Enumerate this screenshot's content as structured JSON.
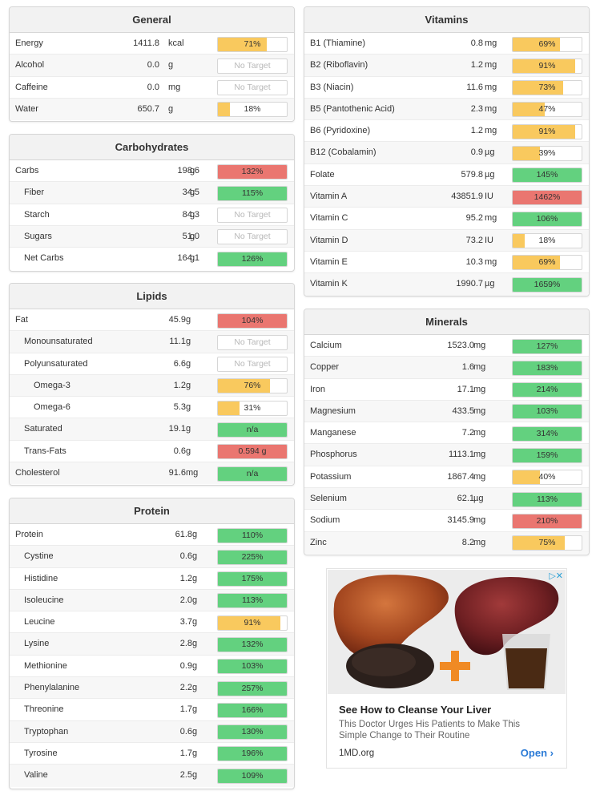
{
  "colors": {
    "orange": "#f9c95e",
    "red": "#ea7670",
    "green": "#63d17f"
  },
  "general": {
    "title": "General",
    "rows": [
      {
        "name": "Energy",
        "amount": "1411.8",
        "unit": "kcal",
        "target": "71%",
        "fill": 0.71,
        "color": "orange",
        "indent": 0
      },
      {
        "name": "Alcohol",
        "amount": "0.0",
        "unit": "g",
        "target": "No Target",
        "fill": 0,
        "color": "none",
        "indent": 0
      },
      {
        "name": "Caffeine",
        "amount": "0.0",
        "unit": "mg",
        "target": "No Target",
        "fill": 0,
        "color": "none",
        "indent": 0
      },
      {
        "name": "Water",
        "amount": "650.7",
        "unit": "g",
        "target": "18%",
        "fill": 0.18,
        "color": "orange",
        "indent": 0
      }
    ]
  },
  "carbohydrates": {
    "title": "Carbohydrates",
    "rows": [
      {
        "name": "Carbs",
        "amount": "198.6",
        "unit": "g",
        "target": "132%",
        "fill": 1,
        "color": "red",
        "indent": 0
      },
      {
        "name": "Fiber",
        "amount": "34.5",
        "unit": "g",
        "target": "115%",
        "fill": 1,
        "color": "green",
        "indent": 1
      },
      {
        "name": "Starch",
        "amount": "84.3",
        "unit": "g",
        "target": "No Target",
        "fill": 0,
        "color": "none",
        "indent": 1
      },
      {
        "name": "Sugars",
        "amount": "51.0",
        "unit": "g",
        "target": "No Target",
        "fill": 0,
        "color": "none",
        "indent": 1
      },
      {
        "name": "Net Carbs",
        "amount": "164.1",
        "unit": "g",
        "target": "126%",
        "fill": 1,
        "color": "green",
        "indent": 1
      }
    ]
  },
  "lipids": {
    "title": "Lipids",
    "rows": [
      {
        "name": "Fat",
        "amount": "45.9",
        "unit": "g",
        "target": "104%",
        "fill": 1,
        "color": "red",
        "indent": 0
      },
      {
        "name": "Monounsaturated",
        "amount": "11.1",
        "unit": "g",
        "target": "No Target",
        "fill": 0,
        "color": "none",
        "indent": 1
      },
      {
        "name": "Polyunsaturated",
        "amount": "6.6",
        "unit": "g",
        "target": "No Target",
        "fill": 0,
        "color": "none",
        "indent": 1
      },
      {
        "name": "Omega-3",
        "amount": "1.2",
        "unit": "g",
        "target": "76%",
        "fill": 0.76,
        "color": "orange",
        "indent": 2
      },
      {
        "name": "Omega-6",
        "amount": "5.3",
        "unit": "g",
        "target": "31%",
        "fill": 0.31,
        "color": "orange",
        "indent": 2
      },
      {
        "name": "Saturated",
        "amount": "19.1",
        "unit": "g",
        "target": "n/a",
        "fill": 1,
        "color": "green",
        "indent": 1
      },
      {
        "name": "Trans-Fats",
        "amount": "0.6",
        "unit": "g",
        "target": "0.594 g",
        "fill": 1,
        "color": "red",
        "indent": 1
      },
      {
        "name": "Cholesterol",
        "amount": "91.6",
        "unit": "mg",
        "target": "n/a",
        "fill": 1,
        "color": "green",
        "indent": 0
      }
    ]
  },
  "protein": {
    "title": "Protein",
    "rows": [
      {
        "name": "Protein",
        "amount": "61.8",
        "unit": "g",
        "target": "110%",
        "fill": 1,
        "color": "green",
        "indent": 0
      },
      {
        "name": "Cystine",
        "amount": "0.6",
        "unit": "g",
        "target": "225%",
        "fill": 1,
        "color": "green",
        "indent": 1
      },
      {
        "name": "Histidine",
        "amount": "1.2",
        "unit": "g",
        "target": "175%",
        "fill": 1,
        "color": "green",
        "indent": 1
      },
      {
        "name": "Isoleucine",
        "amount": "2.0",
        "unit": "g",
        "target": "113%",
        "fill": 1,
        "color": "green",
        "indent": 1
      },
      {
        "name": "Leucine",
        "amount": "3.7",
        "unit": "g",
        "target": "91%",
        "fill": 0.91,
        "color": "orange",
        "indent": 1
      },
      {
        "name": "Lysine",
        "amount": "2.8",
        "unit": "g",
        "target": "132%",
        "fill": 1,
        "color": "green",
        "indent": 1
      },
      {
        "name": "Methionine",
        "amount": "0.9",
        "unit": "g",
        "target": "103%",
        "fill": 1,
        "color": "green",
        "indent": 1
      },
      {
        "name": "Phenylalanine",
        "amount": "2.2",
        "unit": "g",
        "target": "257%",
        "fill": 1,
        "color": "green",
        "indent": 1
      },
      {
        "name": "Threonine",
        "amount": "1.7",
        "unit": "g",
        "target": "166%",
        "fill": 1,
        "color": "green",
        "indent": 1
      },
      {
        "name": "Tryptophan",
        "amount": "0.6",
        "unit": "g",
        "target": "130%",
        "fill": 1,
        "color": "green",
        "indent": 1
      },
      {
        "name": "Tyrosine",
        "amount": "1.7",
        "unit": "g",
        "target": "196%",
        "fill": 1,
        "color": "green",
        "indent": 1
      },
      {
        "name": "Valine",
        "amount": "2.5",
        "unit": "g",
        "target": "109%",
        "fill": 1,
        "color": "green",
        "indent": 1
      }
    ]
  },
  "vitamins": {
    "title": "Vitamins",
    "rows": [
      {
        "name": "B1 (Thiamine)",
        "amount": "0.8",
        "unit": "mg",
        "target": "69%",
        "fill": 0.69,
        "color": "orange",
        "indent": 0
      },
      {
        "name": "B2 (Riboflavin)",
        "amount": "1.2",
        "unit": "mg",
        "target": "91%",
        "fill": 0.91,
        "color": "orange",
        "indent": 0
      },
      {
        "name": "B3 (Niacin)",
        "amount": "11.6",
        "unit": "mg",
        "target": "73%",
        "fill": 0.73,
        "color": "orange",
        "indent": 0
      },
      {
        "name": "B5 (Pantothenic Acid)",
        "amount": "2.3",
        "unit": "mg",
        "target": "47%",
        "fill": 0.47,
        "color": "orange",
        "indent": 0
      },
      {
        "name": "B6 (Pyridoxine)",
        "amount": "1.2",
        "unit": "mg",
        "target": "91%",
        "fill": 0.91,
        "color": "orange",
        "indent": 0
      },
      {
        "name": "B12 (Cobalamin)",
        "amount": "0.9",
        "unit": "µg",
        "target": "39%",
        "fill": 0.39,
        "color": "orange",
        "indent": 0
      },
      {
        "name": "Folate",
        "amount": "579.8",
        "unit": "µg",
        "target": "145%",
        "fill": 1,
        "color": "green",
        "indent": 0
      },
      {
        "name": "Vitamin A",
        "amount": "43851.9",
        "unit": "IU",
        "target": "1462%",
        "fill": 1,
        "color": "red",
        "indent": 0
      },
      {
        "name": "Vitamin C",
        "amount": "95.2",
        "unit": "mg",
        "target": "106%",
        "fill": 1,
        "color": "green",
        "indent": 0
      },
      {
        "name": "Vitamin D",
        "amount": "73.2",
        "unit": "IU",
        "target": "18%",
        "fill": 0.18,
        "color": "orange",
        "indent": 0
      },
      {
        "name": "Vitamin E",
        "amount": "10.3",
        "unit": "mg",
        "target": "69%",
        "fill": 0.69,
        "color": "orange",
        "indent": 0
      },
      {
        "name": "Vitamin K",
        "amount": "1990.7",
        "unit": "µg",
        "target": "1659%",
        "fill": 1,
        "color": "green",
        "indent": 0
      }
    ]
  },
  "minerals": {
    "title": "Minerals",
    "rows": [
      {
        "name": "Calcium",
        "amount": "1523.0",
        "unit": "mg",
        "target": "127%",
        "fill": 1,
        "color": "green",
        "indent": 0
      },
      {
        "name": "Copper",
        "amount": "1.6",
        "unit": "mg",
        "target": "183%",
        "fill": 1,
        "color": "green",
        "indent": 0
      },
      {
        "name": "Iron",
        "amount": "17.1",
        "unit": "mg",
        "target": "214%",
        "fill": 1,
        "color": "green",
        "indent": 0
      },
      {
        "name": "Magnesium",
        "amount": "433.5",
        "unit": "mg",
        "target": "103%",
        "fill": 1,
        "color": "green",
        "indent": 0
      },
      {
        "name": "Manganese",
        "amount": "7.2",
        "unit": "mg",
        "target": "314%",
        "fill": 1,
        "color": "green",
        "indent": 0
      },
      {
        "name": "Phosphorus",
        "amount": "1113.1",
        "unit": "mg",
        "target": "159%",
        "fill": 1,
        "color": "green",
        "indent": 0
      },
      {
        "name": "Potassium",
        "amount": "1867.4",
        "unit": "mg",
        "target": "40%",
        "fill": 0.4,
        "color": "orange",
        "indent": 0
      },
      {
        "name": "Selenium",
        "amount": "62.1",
        "unit": "µg",
        "target": "113%",
        "fill": 1,
        "color": "green",
        "indent": 0
      },
      {
        "name": "Sodium",
        "amount": "3145.9",
        "unit": "mg",
        "target": "210%",
        "fill": 1,
        "color": "red",
        "indent": 0
      },
      {
        "name": "Zinc",
        "amount": "8.2",
        "unit": "mg",
        "target": "75%",
        "fill": 0.75,
        "color": "orange",
        "indent": 0
      }
    ]
  },
  "ad": {
    "title": "See How to Cleanse Your Liver",
    "description": "This Doctor Urges His Patients to Make This Simple Change to Their Routine",
    "domain": "1MD.org",
    "cta": "Open",
    "cta_icon": "chevron-right-icon",
    "badge_icon": "adchoices-icon"
  }
}
